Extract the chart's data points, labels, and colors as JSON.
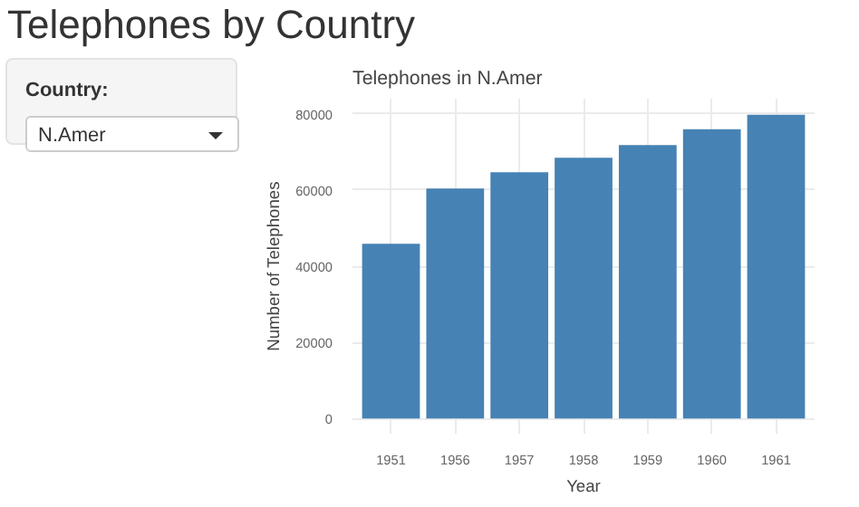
{
  "chart_data": {
    "type": "bar",
    "title": "Telephones by Country",
    "subtitle": "Telephones in N.Amer",
    "xlabel": "Year",
    "ylabel": "Number of Telephones",
    "annotations": [
      "Country:",
      "N.Amer"
    ],
    "categories": [
      "1951",
      "1956",
      "1957",
      "1958",
      "1959",
      "1960",
      "1961"
    ],
    "values": [
      45900,
      60400,
      64700,
      68500,
      71800,
      76000,
      79800
    ],
    "color": "#4682b4",
    "ylim": [
      -4000,
      84000
    ],
    "yticks": [
      0,
      20000,
      40000,
      60000,
      80000
    ],
    "grid": true
  }
}
